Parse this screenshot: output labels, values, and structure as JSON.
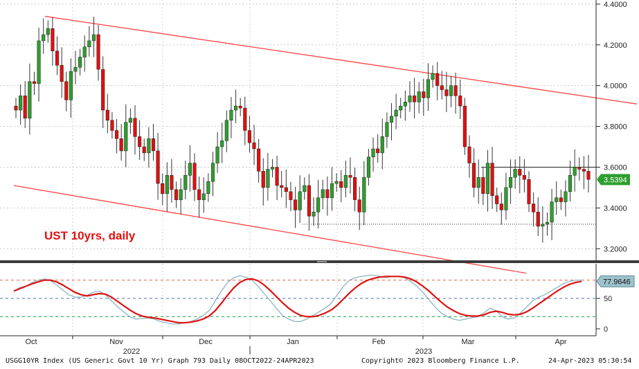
{
  "chart_data": {
    "type": "candlestick",
    "annotation": "UST 10yrs, daily",
    "price_axis": {
      "ticks": [
        3.2,
        3.4,
        3.6,
        3.8,
        4.0,
        4.2,
        4.4
      ],
      "tick_labels": [
        "3.2000",
        "3.4000",
        "3.6000",
        "3.8000",
        "4.0000",
        "4.2000",
        "4.4000"
      ],
      "range": [
        3.15,
        4.42
      ]
    },
    "last_price_label": "3.5394",
    "last_price_color": "#2e9e2e",
    "rsi_axis": {
      "ticks": [
        0,
        50
      ],
      "tick_labels": [
        "0",
        "50"
      ],
      "range": [
        0,
        100
      ]
    },
    "rsi_last_label": "77.9646",
    "rsi_reference_levels": [
      80,
      50,
      20
    ],
    "months": [
      "Oct",
      "Nov",
      "Dec",
      "Jan",
      "Feb",
      "Mar",
      "Apr"
    ],
    "years": [
      "2022",
      "2023"
    ],
    "resistance_level": 3.6,
    "support_level": 3.32,
    "channel_upper": {
      "from_day": 0,
      "from_price": 4.34,
      "to_day": 138,
      "to_price": 3.91
    },
    "channel_lower": {
      "from_day": 0,
      "from_price": 3.51,
      "to_day": 138,
      "to_price": 3.08
    },
    "colors": {
      "up": "#2e9e2e",
      "down": "#e01010",
      "channel": "#ff4040",
      "rsi_fast": "#8ab4c0",
      "rsi_slow": "#e01010"
    },
    "candles_close": [
      3.88,
      3.95,
      3.84,
      4.02,
      4.01,
      4.22,
      4.25,
      4.28,
      4.17,
      4.1,
      4.02,
      3.93,
      4.07,
      4.09,
      4.14,
      4.19,
      4.22,
      4.25,
      4.08,
      3.88,
      3.83,
      3.78,
      3.74,
      3.68,
      3.82,
      3.84,
      3.75,
      3.7,
      3.67,
      3.74,
      3.68,
      3.52,
      3.47,
      3.56,
      3.49,
      3.44,
      3.49,
      3.56,
      3.62,
      3.49,
      3.44,
      3.47,
      3.53,
      3.62,
      3.7,
      3.73,
      3.83,
      3.88,
      3.9,
      3.89,
      3.78,
      3.72,
      3.69,
      3.58,
      3.5,
      3.59,
      3.6,
      3.51,
      3.5,
      3.48,
      3.44,
      3.39,
      3.48,
      3.51,
      3.36,
      3.38,
      3.45,
      3.49,
      3.45,
      3.52,
      3.53,
      3.5,
      3.56,
      3.55,
      3.44,
      3.38,
      3.55,
      3.65,
      3.69,
      3.67,
      3.75,
      3.82,
      3.85,
      3.88,
      3.9,
      3.92,
      3.95,
      3.92,
      3.97,
      3.94,
      4.03,
      4.06,
      4.0,
      3.98,
      3.95,
      4.0,
      3.95,
      3.9,
      3.7,
      3.62,
      3.5,
      3.55,
      3.47,
      3.62,
      3.46,
      3.42,
      3.39,
      3.5,
      3.55,
      3.59,
      3.56,
      3.54,
      3.42,
      3.38,
      3.31,
      3.32,
      3.33,
      3.43,
      3.45,
      3.43,
      3.48,
      3.56,
      3.6,
      3.59,
      3.58,
      3.54
    ],
    "candles_open": [
      3.9,
      3.88,
      3.95,
      3.84,
      4.02,
      4.01,
      4.22,
      4.25,
      4.28,
      4.17,
      4.1,
      4.02,
      3.93,
      4.07,
      4.09,
      4.14,
      4.19,
      4.22,
      4.25,
      4.08,
      3.88,
      3.83,
      3.78,
      3.74,
      3.68,
      3.82,
      3.84,
      3.75,
      3.7,
      3.67,
      3.74,
      3.68,
      3.52,
      3.47,
      3.56,
      3.49,
      3.44,
      3.49,
      3.56,
      3.62,
      3.49,
      3.44,
      3.47,
      3.53,
      3.62,
      3.7,
      3.73,
      3.83,
      3.88,
      3.9,
      3.89,
      3.78,
      3.72,
      3.69,
      3.58,
      3.5,
      3.59,
      3.6,
      3.51,
      3.5,
      3.48,
      3.44,
      3.39,
      3.48,
      3.51,
      3.36,
      3.38,
      3.45,
      3.49,
      3.45,
      3.52,
      3.53,
      3.5,
      3.56,
      3.55,
      3.44,
      3.38,
      3.55,
      3.65,
      3.69,
      3.67,
      3.75,
      3.82,
      3.85,
      3.88,
      3.9,
      3.92,
      3.95,
      3.92,
      3.97,
      3.94,
      4.03,
      4.06,
      4.0,
      3.98,
      3.95,
      4.0,
      3.95,
      3.9,
      3.7,
      3.62,
      3.5,
      3.55,
      3.47,
      3.62,
      3.46,
      3.42,
      3.39,
      3.5,
      3.55,
      3.59,
      3.56,
      3.54,
      3.42,
      3.38,
      3.31,
      3.32,
      3.33,
      3.43,
      3.45,
      3.43,
      3.48,
      3.56,
      3.6,
      3.59,
      3.58
    ],
    "rsi_fast": [
      62,
      68,
      70,
      76,
      80,
      82,
      79,
      72,
      64,
      56,
      52,
      52,
      55,
      60,
      62,
      56,
      46,
      36,
      28,
      20,
      16,
      17,
      18,
      16,
      12,
      10,
      8,
      8,
      10,
      12,
      16,
      22,
      30,
      46,
      62,
      76,
      84,
      87,
      85,
      80,
      70,
      58,
      46,
      34,
      22,
      16,
      12,
      12,
      16,
      22,
      28,
      34,
      42,
      56,
      70,
      80,
      84,
      86,
      88,
      88,
      86,
      84,
      86,
      86,
      84,
      78,
      70,
      60,
      48,
      36,
      26,
      20,
      16,
      14,
      16,
      18,
      20,
      26,
      34,
      30,
      20,
      16,
      18,
      26,
      36,
      46,
      52,
      56,
      62,
      68,
      74,
      78,
      80,
      80
    ],
    "rsi_slow": [
      62,
      66,
      70,
      74,
      77,
      80,
      80,
      77,
      72,
      66,
      60,
      56,
      54,
      56,
      58,
      57,
      52,
      45,
      38,
      31,
      25,
      21,
      19,
      18,
      16,
      14,
      12,
      10,
      10,
      11,
      13,
      16,
      21,
      30,
      42,
      55,
      67,
      76,
      81,
      82,
      79,
      72,
      63,
      53,
      43,
      34,
      27,
      22,
      20,
      20,
      22,
      26,
      31,
      39,
      49,
      59,
      68,
      75,
      80,
      83,
      85,
      86,
      86,
      86,
      85,
      82,
      77,
      70,
      62,
      53,
      44,
      36,
      30,
      25,
      22,
      21,
      21,
      23,
      27,
      29,
      27,
      24,
      23,
      24,
      28,
      34,
      41,
      48,
      55,
      62,
      68,
      73,
      76,
      78
    ]
  },
  "footer": {
    "left": "USGG10YR Index (US Generic Govt 10 Yr) Graph 793  Daily 08OCT2022-24APR2023",
    "center": "Copyright© 2023 Bloomberg Finance L.P.",
    "right": "24-Apr-2023 05:30:54"
  }
}
